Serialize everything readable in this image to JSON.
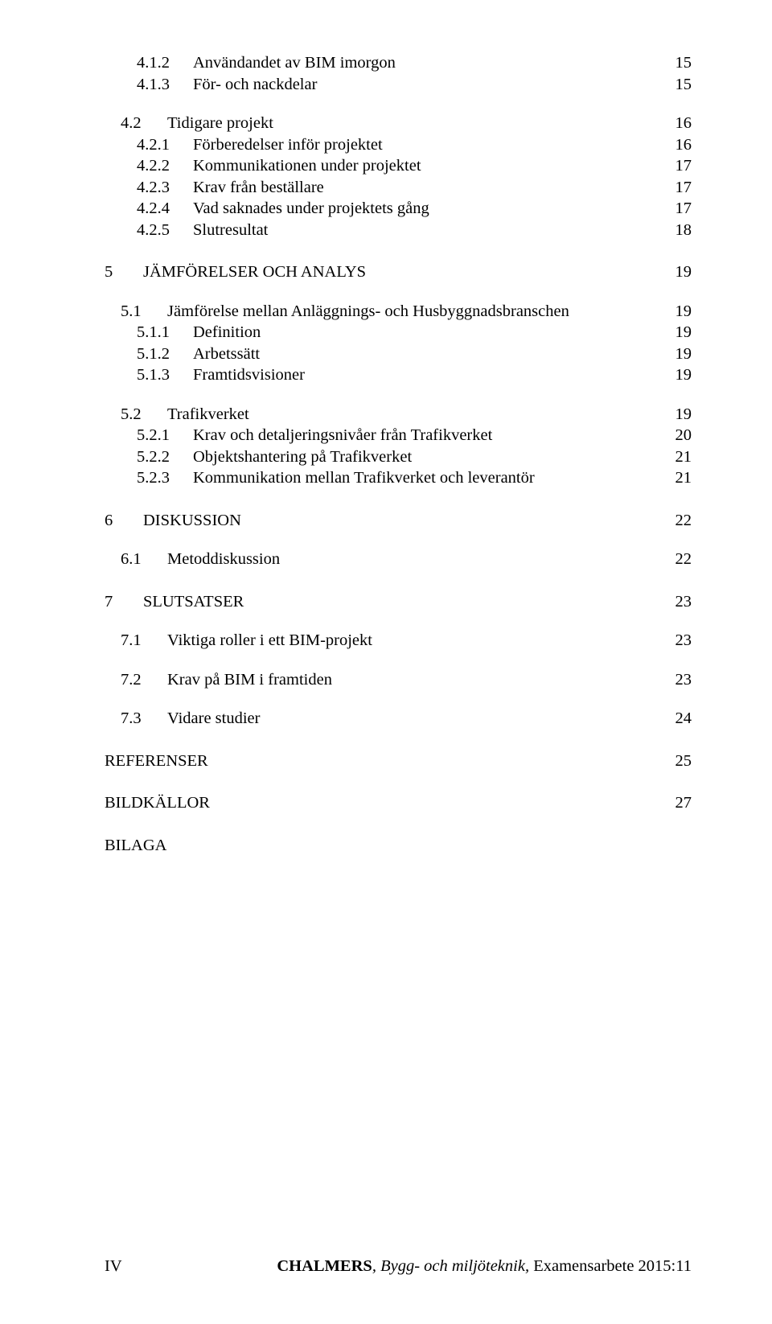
{
  "colors": {
    "text": "#000000",
    "background": "#ffffff"
  },
  "typography": {
    "family": "Times New Roman",
    "size_pt": 12,
    "line_height": 1.0
  },
  "toc": [
    {
      "level": 3,
      "num": "4.1.2",
      "title": "Användandet av BIM imorgon",
      "page": "15",
      "gap": ""
    },
    {
      "level": 3,
      "num": "4.1.3",
      "title": "För- och nackdelar",
      "page": "15",
      "gap": ""
    },
    {
      "level": 2,
      "num": "4.2",
      "title": "Tidigare projekt",
      "page": "16",
      "gap": "block-gap"
    },
    {
      "level": 3,
      "num": "4.2.1",
      "title": "Förberedelser inför projektet",
      "page": "16",
      "gap": ""
    },
    {
      "level": 3,
      "num": "4.2.2",
      "title": "Kommunikationen under projektet",
      "page": "17",
      "gap": ""
    },
    {
      "level": 3,
      "num": "4.2.3",
      "title": "Krav från beställare",
      "page": "17",
      "gap": ""
    },
    {
      "level": 3,
      "num": "4.2.4",
      "title": "Vad saknades under projektets gång",
      "page": "17",
      "gap": ""
    },
    {
      "level": 3,
      "num": "4.2.5",
      "title": "Slutresultat",
      "page": "18",
      "gap": ""
    },
    {
      "level": 1,
      "num": "5",
      "title": "JÄMFÖRELSER OCH ANALYS",
      "page": "19",
      "gap": "block-gap-big"
    },
    {
      "level": 2,
      "num": "5.1",
      "title": "Jämförelse mellan Anläggnings- och Husbyggnadsbranschen",
      "page": "19",
      "gap": "block-gap"
    },
    {
      "level": 3,
      "num": "5.1.1",
      "title": "Definition",
      "page": "19",
      "gap": ""
    },
    {
      "level": 3,
      "num": "5.1.2",
      "title": "Arbetssätt",
      "page": "19",
      "gap": ""
    },
    {
      "level": 3,
      "num": "5.1.3",
      "title": "Framtidsvisioner",
      "page": "19",
      "gap": ""
    },
    {
      "level": 2,
      "num": "5.2",
      "title": "Trafikverket",
      "page": "19",
      "gap": "block-gap"
    },
    {
      "level": 3,
      "num": "5.2.1",
      "title": "Krav och detaljeringsnivåer från Trafikverket",
      "page": "20",
      "gap": ""
    },
    {
      "level": 3,
      "num": "5.2.2",
      "title": "Objektshantering på Trafikverket",
      "page": "21",
      "gap": ""
    },
    {
      "level": 3,
      "num": "5.2.3",
      "title": "Kommunikation mellan Trafikverket och leverantör",
      "page": "21",
      "gap": ""
    },
    {
      "level": 1,
      "num": "6",
      "title": "DISKUSSION",
      "page": "22",
      "gap": "block-gap-big"
    },
    {
      "level": 2,
      "num": "6.1",
      "title": "Metoddiskussion",
      "page": "22",
      "gap": "block-gap"
    },
    {
      "level": 1,
      "num": "7",
      "title": "SLUTSATSER",
      "page": "23",
      "gap": "block-gap-big"
    },
    {
      "level": 2,
      "num": "7.1",
      "title": "Viktiga roller i ett BIM-projekt",
      "page": "23",
      "gap": "block-gap"
    },
    {
      "level": 2,
      "num": "7.2",
      "title": "Krav på BIM i framtiden",
      "page": "23",
      "gap": "block-gap"
    },
    {
      "level": 2,
      "num": "7.3",
      "title": "Vidare studier",
      "page": "24",
      "gap": "block-gap"
    },
    {
      "level": 1,
      "num": "",
      "title": "REFERENSER",
      "page": "25",
      "gap": "block-gap-big"
    },
    {
      "level": 1,
      "num": "",
      "title": "BILDKÄLLOR",
      "page": "27",
      "gap": "block-gap-big"
    },
    {
      "level": 1,
      "num": "",
      "title": "BILAGA",
      "page": "",
      "gap": "block-gap-big"
    }
  ],
  "footer": {
    "left": "IV",
    "right_bold": "CHALMERS",
    "right_ital": ", Bygg- och miljöteknik,",
    "right_plain": " Examensarbete 2015:11"
  }
}
